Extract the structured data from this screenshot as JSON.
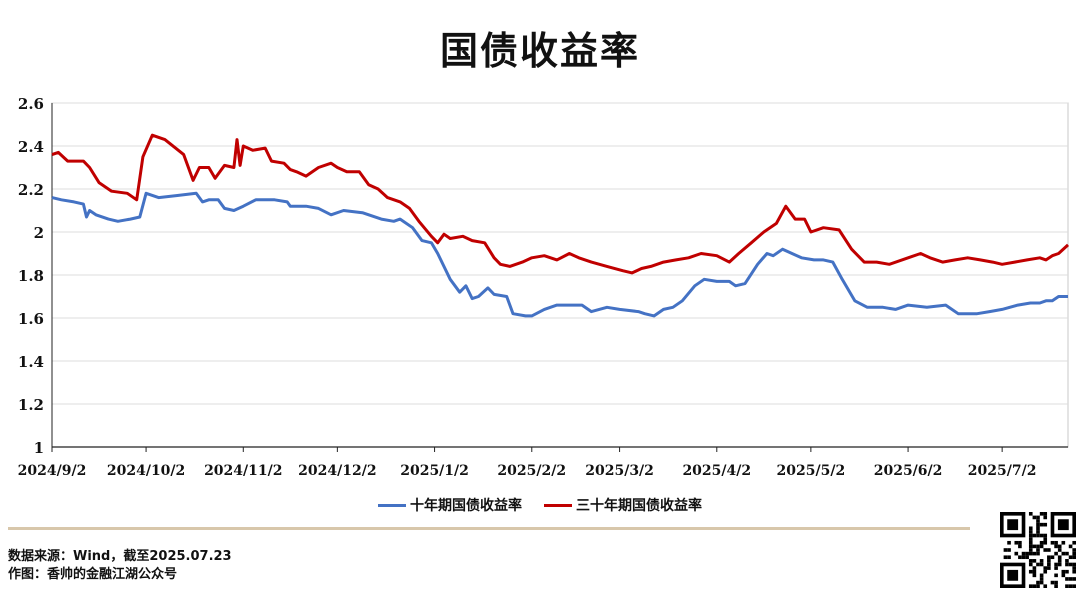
{
  "header": {
    "title": "国债收益率"
  },
  "legend": {
    "ten_year": "十年期国债收益率",
    "thirty_year": "三十年期国债收益率"
  },
  "footer": {
    "source": "数据来源：Wind，截至2025.07.23",
    "author": "作图：香帅的金融江湖公众号"
  },
  "colors": {
    "ten_year": "#4472c4",
    "thirty_year": "#c00000",
    "divider": "#d8c7ab"
  },
  "chart_data": {
    "type": "line",
    "title": "国债收益率",
    "xlabel": "",
    "ylabel": "",
    "ylim": [
      1,
      2.6
    ],
    "yticks": [
      "1",
      "1.2",
      "1.4",
      "1.6",
      "1.8",
      "2",
      "2.2",
      "2.4",
      "2.6"
    ],
    "xlim": [
      "2024-09-02",
      "2025-07-23"
    ],
    "xticks": [
      {
        "date": "2024-09-02",
        "label": "2024/9/2"
      },
      {
        "date": "2024-10-02",
        "label": "2024/10/2"
      },
      {
        "date": "2024-11-02",
        "label": "2024/11/2"
      },
      {
        "date": "2024-12-02",
        "label": "2024/12/2"
      },
      {
        "date": "2025-01-02",
        "label": "2025/1/2"
      },
      {
        "date": "2025-02-02",
        "label": "2025/2/2"
      },
      {
        "date": "2025-03-02",
        "label": "2025/3/2"
      },
      {
        "date": "2025-04-02",
        "label": "2025/4/2"
      },
      {
        "date": "2025-05-02",
        "label": "2025/5/2"
      },
      {
        "date": "2025-06-02",
        "label": "2025/6/2"
      },
      {
        "date": "2025-07-02",
        "label": "2025/7/2"
      }
    ],
    "grid": true,
    "legend_position": "bottom",
    "series": [
      {
        "name": "十年期国债收益率",
        "color": "#4472c4",
        "points": [
          [
            "2024-09-02",
            2.16
          ],
          [
            "2024-09-05",
            2.15
          ],
          [
            "2024-09-09",
            2.14
          ],
          [
            "2024-09-12",
            2.13
          ],
          [
            "2024-09-13",
            2.07
          ],
          [
            "2024-09-14",
            2.1
          ],
          [
            "2024-09-16",
            2.08
          ],
          [
            "2024-09-20",
            2.06
          ],
          [
            "2024-09-23",
            2.05
          ],
          [
            "2024-09-27",
            2.06
          ],
          [
            "2024-09-30",
            2.07
          ],
          [
            "2024-10-02",
            2.18
          ],
          [
            "2024-10-06",
            2.16
          ],
          [
            "2024-10-12",
            2.17
          ],
          [
            "2024-10-18",
            2.18
          ],
          [
            "2024-10-20",
            2.14
          ],
          [
            "2024-10-22",
            2.15
          ],
          [
            "2024-10-25",
            2.15
          ],
          [
            "2024-10-27",
            2.11
          ],
          [
            "2024-10-30",
            2.1
          ],
          [
            "2024-11-02",
            2.12
          ],
          [
            "2024-11-06",
            2.15
          ],
          [
            "2024-11-12",
            2.15
          ],
          [
            "2024-11-16",
            2.14
          ],
          [
            "2024-11-17",
            2.12
          ],
          [
            "2024-11-22",
            2.12
          ],
          [
            "2024-11-26",
            2.11
          ],
          [
            "2024-11-30",
            2.08
          ],
          [
            "2024-12-04",
            2.1
          ],
          [
            "2024-12-10",
            2.09
          ],
          [
            "2024-12-16",
            2.06
          ],
          [
            "2024-12-20",
            2.05
          ],
          [
            "2024-12-22",
            2.06
          ],
          [
            "2024-12-26",
            2.02
          ],
          [
            "2024-12-29",
            1.96
          ],
          [
            "2025-01-01",
            1.95
          ],
          [
            "2025-01-03",
            1.9
          ],
          [
            "2025-01-07",
            1.78
          ],
          [
            "2025-01-10",
            1.72
          ],
          [
            "2025-01-12",
            1.75
          ],
          [
            "2025-01-14",
            1.69
          ],
          [
            "2025-01-16",
            1.7
          ],
          [
            "2025-01-19",
            1.74
          ],
          [
            "2025-01-21",
            1.71
          ],
          [
            "2025-01-25",
            1.7
          ],
          [
            "2025-01-27",
            1.62
          ],
          [
            "2025-01-31",
            1.61
          ],
          [
            "2025-02-02",
            1.61
          ],
          [
            "2025-02-06",
            1.64
          ],
          [
            "2025-02-10",
            1.66
          ],
          [
            "2025-02-14",
            1.66
          ],
          [
            "2025-02-18",
            1.66
          ],
          [
            "2025-02-21",
            1.63
          ],
          [
            "2025-02-26",
            1.65
          ],
          [
            "2025-03-02",
            1.64
          ],
          [
            "2025-03-08",
            1.63
          ],
          [
            "2025-03-10",
            1.62
          ],
          [
            "2025-03-13",
            1.61
          ],
          [
            "2025-03-16",
            1.64
          ],
          [
            "2025-03-19",
            1.65
          ],
          [
            "2025-03-22",
            1.68
          ],
          [
            "2025-03-26",
            1.75
          ],
          [
            "2025-03-29",
            1.78
          ],
          [
            "2025-04-02",
            1.77
          ],
          [
            "2025-04-06",
            1.77
          ],
          [
            "2025-04-08",
            1.75
          ],
          [
            "2025-04-11",
            1.76
          ],
          [
            "2025-04-15",
            1.85
          ],
          [
            "2025-04-18",
            1.9
          ],
          [
            "2025-04-20",
            1.89
          ],
          [
            "2025-04-23",
            1.92
          ],
          [
            "2025-04-26",
            1.9
          ],
          [
            "2025-04-29",
            1.88
          ],
          [
            "2025-05-03",
            1.87
          ],
          [
            "2025-05-06",
            1.87
          ],
          [
            "2025-05-09",
            1.86
          ],
          [
            "2025-05-12",
            1.78
          ],
          [
            "2025-05-16",
            1.68
          ],
          [
            "2025-05-20",
            1.65
          ],
          [
            "2025-05-25",
            1.65
          ],
          [
            "2025-05-29",
            1.64
          ],
          [
            "2025-06-02",
            1.66
          ],
          [
            "2025-06-08",
            1.65
          ],
          [
            "2025-06-14",
            1.66
          ],
          [
            "2025-06-18",
            1.62
          ],
          [
            "2025-06-24",
            1.62
          ],
          [
            "2025-06-28",
            1.63
          ],
          [
            "2025-07-02",
            1.64
          ],
          [
            "2025-07-07",
            1.66
          ],
          [
            "2025-07-11",
            1.67
          ],
          [
            "2025-07-14",
            1.67
          ],
          [
            "2025-07-16",
            1.68
          ],
          [
            "2025-07-18",
            1.68
          ],
          [
            "2025-07-20",
            1.7
          ],
          [
            "2025-07-23",
            1.7
          ]
        ]
      },
      {
        "name": "三十年期国债收益率",
        "color": "#c00000",
        "points": [
          [
            "2024-09-02",
            2.36
          ],
          [
            "2024-09-04",
            2.37
          ],
          [
            "2024-09-07",
            2.33
          ],
          [
            "2024-09-12",
            2.33
          ],
          [
            "2024-09-14",
            2.3
          ],
          [
            "2024-09-17",
            2.23
          ],
          [
            "2024-09-21",
            2.19
          ],
          [
            "2024-09-26",
            2.18
          ],
          [
            "2024-09-29",
            2.15
          ],
          [
            "2024-10-01",
            2.35
          ],
          [
            "2024-10-04",
            2.45
          ],
          [
            "2024-10-08",
            2.43
          ],
          [
            "2024-10-14",
            2.36
          ],
          [
            "2024-10-17",
            2.24
          ],
          [
            "2024-10-19",
            2.3
          ],
          [
            "2024-10-22",
            2.3
          ],
          [
            "2024-10-24",
            2.25
          ],
          [
            "2024-10-27",
            2.31
          ],
          [
            "2024-10-30",
            2.3
          ],
          [
            "2024-10-31",
            2.43
          ],
          [
            "2024-11-01",
            2.31
          ],
          [
            "2024-11-02",
            2.4
          ],
          [
            "2024-11-05",
            2.38
          ],
          [
            "2024-11-09",
            2.39
          ],
          [
            "2024-11-11",
            2.33
          ],
          [
            "2024-11-15",
            2.32
          ],
          [
            "2024-11-17",
            2.29
          ],
          [
            "2024-11-19",
            2.28
          ],
          [
            "2024-11-22",
            2.26
          ],
          [
            "2024-11-26",
            2.3
          ],
          [
            "2024-11-30",
            2.32
          ],
          [
            "2024-12-02",
            2.3
          ],
          [
            "2024-12-05",
            2.28
          ],
          [
            "2024-12-09",
            2.28
          ],
          [
            "2024-12-12",
            2.22
          ],
          [
            "2024-12-15",
            2.2
          ],
          [
            "2024-12-18",
            2.16
          ],
          [
            "2024-12-22",
            2.14
          ],
          [
            "2024-12-25",
            2.11
          ],
          [
            "2024-12-28",
            2.05
          ],
          [
            "2025-01-01",
            1.98
          ],
          [
            "2025-01-03",
            1.95
          ],
          [
            "2025-01-05",
            1.99
          ],
          [
            "2025-01-07",
            1.97
          ],
          [
            "2025-01-11",
            1.98
          ],
          [
            "2025-01-14",
            1.96
          ],
          [
            "2025-01-18",
            1.95
          ],
          [
            "2025-01-21",
            1.88
          ],
          [
            "2025-01-23",
            1.85
          ],
          [
            "2025-01-26",
            1.84
          ],
          [
            "2025-01-30",
            1.86
          ],
          [
            "2025-02-02",
            1.88
          ],
          [
            "2025-02-06",
            1.89
          ],
          [
            "2025-02-10",
            1.87
          ],
          [
            "2025-02-14",
            1.9
          ],
          [
            "2025-02-17",
            1.88
          ],
          [
            "2025-02-21",
            1.86
          ],
          [
            "2025-02-26",
            1.84
          ],
          [
            "2025-03-03",
            1.82
          ],
          [
            "2025-03-06",
            1.81
          ],
          [
            "2025-03-09",
            1.83
          ],
          [
            "2025-03-12",
            1.84
          ],
          [
            "2025-03-16",
            1.86
          ],
          [
            "2025-03-20",
            1.87
          ],
          [
            "2025-03-24",
            1.88
          ],
          [
            "2025-03-28",
            1.9
          ],
          [
            "2025-04-02",
            1.89
          ],
          [
            "2025-04-06",
            1.86
          ],
          [
            "2025-04-09",
            1.9
          ],
          [
            "2025-04-13",
            1.95
          ],
          [
            "2025-04-17",
            2.0
          ],
          [
            "2025-04-21",
            2.04
          ],
          [
            "2025-04-24",
            2.12
          ],
          [
            "2025-04-27",
            2.06
          ],
          [
            "2025-04-30",
            2.06
          ],
          [
            "2025-05-02",
            2.0
          ],
          [
            "2025-05-06",
            2.02
          ],
          [
            "2025-05-11",
            2.01
          ],
          [
            "2025-05-15",
            1.92
          ],
          [
            "2025-05-19",
            1.86
          ],
          [
            "2025-05-23",
            1.86
          ],
          [
            "2025-05-27",
            1.85
          ],
          [
            "2025-06-02",
            1.88
          ],
          [
            "2025-06-06",
            1.9
          ],
          [
            "2025-06-09",
            1.88
          ],
          [
            "2025-06-13",
            1.86
          ],
          [
            "2025-06-17",
            1.87
          ],
          [
            "2025-06-21",
            1.88
          ],
          [
            "2025-06-25",
            1.87
          ],
          [
            "2025-06-29",
            1.86
          ],
          [
            "2025-07-02",
            1.85
          ],
          [
            "2025-07-06",
            1.86
          ],
          [
            "2025-07-10",
            1.87
          ],
          [
            "2025-07-14",
            1.88
          ],
          [
            "2025-07-16",
            1.87
          ],
          [
            "2025-07-18",
            1.89
          ],
          [
            "2025-07-20",
            1.9
          ],
          [
            "2025-07-23",
            1.94
          ]
        ]
      }
    ]
  }
}
